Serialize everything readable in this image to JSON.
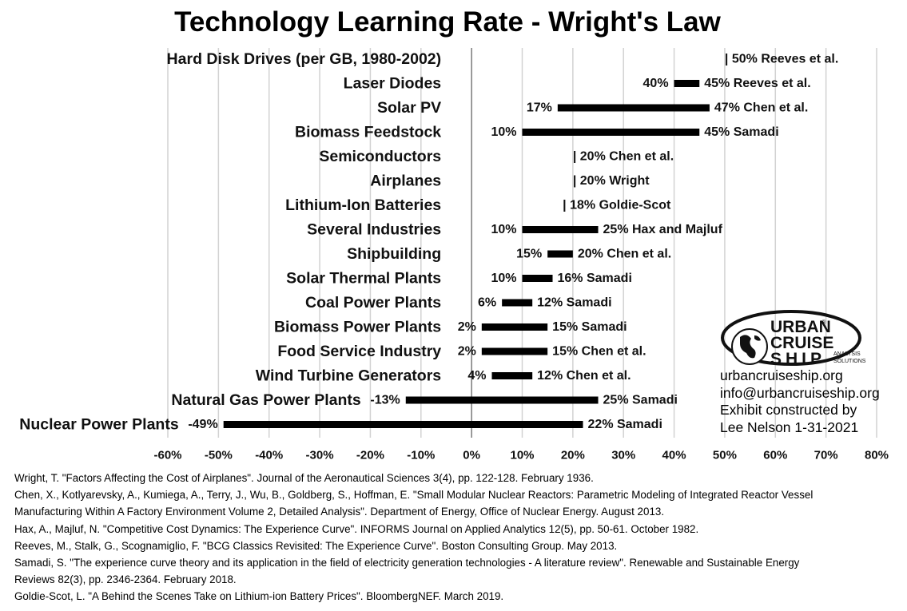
{
  "chart_data": {
    "type": "bar",
    "subtype": "floating-range",
    "title": "Technology Learning Rate - Wright's Law",
    "xlim": [
      -0.6,
      0.8
    ],
    "x_ticks": [
      -0.6,
      -0.5,
      -0.4,
      -0.3,
      -0.2,
      -0.1,
      0,
      0.1,
      0.2,
      0.3,
      0.4,
      0.5,
      0.6,
      0.7,
      0.8
    ],
    "x_tick_labels": [
      "-60%",
      "-50%",
      "-40%",
      "-30%",
      "-20%",
      "-10%",
      "0%",
      "10%",
      "20%",
      "30%",
      "40%",
      "50%",
      "60%",
      "70%",
      "80%"
    ],
    "grid": "vertical",
    "categories": [
      {
        "label": "Hard Disk Drives (per GB, 1980-2002)",
        "low": null,
        "high": 0.5,
        "low_label": "",
        "high_label": "| 50% Reeves et al."
      },
      {
        "label": "Laser Diodes",
        "low": 0.4,
        "high": 0.45,
        "low_label": "40%",
        "high_label": "45% Reeves et al."
      },
      {
        "label": "Solar PV",
        "low": 0.17,
        "high": 0.47,
        "low_label": "17%",
        "high_label": "47% Chen et al."
      },
      {
        "label": "Biomass Feedstock",
        "low": 0.1,
        "high": 0.45,
        "low_label": "10%",
        "high_label": "45% Samadi"
      },
      {
        "label": "Semiconductors",
        "low": null,
        "high": 0.2,
        "low_label": "",
        "high_label": "| 20% Chen et al."
      },
      {
        "label": "Airplanes",
        "low": null,
        "high": 0.2,
        "low_label": "",
        "high_label": "| 20% Wright"
      },
      {
        "label": "Lithium-Ion Batteries",
        "low": null,
        "high": 0.18,
        "low_label": "",
        "high_label": "| 18% Goldie-Scot"
      },
      {
        "label": "Several Industries",
        "low": 0.1,
        "high": 0.25,
        "low_label": "10%",
        "high_label": "25% Hax and Majluf"
      },
      {
        "label": "Shipbuilding",
        "low": 0.15,
        "high": 0.2,
        "low_label": "15%",
        "high_label": "20% Chen et al."
      },
      {
        "label": "Solar Thermal Plants",
        "low": 0.1,
        "high": 0.16,
        "low_label": "10%",
        "high_label": "16% Samadi"
      },
      {
        "label": "Coal Power Plants",
        "low": 0.06,
        "high": 0.12,
        "low_label": "6%",
        "high_label": "12% Samadi"
      },
      {
        "label": "Biomass Power Plants",
        "low": 0.02,
        "high": 0.15,
        "low_label": "2%",
        "high_label": "15% Samadi"
      },
      {
        "label": "Food Service Industry",
        "low": 0.02,
        "high": 0.15,
        "low_label": "2%",
        "high_label": "15% Chen et al."
      },
      {
        "label": "Wind Turbine Generators",
        "low": 0.04,
        "high": 0.12,
        "low_label": "4%",
        "high_label": "12% Chen et al."
      },
      {
        "label": "Natural Gas Power Plants",
        "low": -0.13,
        "high": 0.25,
        "low_label": "-13%",
        "high_label": "25% Samadi"
      },
      {
        "label": "Nuclear Power Plants",
        "low": -0.49,
        "high": 0.22,
        "low_label": "-49%",
        "high_label": "22% Samadi"
      }
    ]
  },
  "logo": {
    "line1": "URBAN",
    "line2": "CRUISE",
    "line3": "SHIP",
    "tag1": "ANALYSIS",
    "tag2": "SOLUTIONS",
    "mark": "®"
  },
  "info": {
    "website": "urbancruiseship.org",
    "email": "info@urbancruiseship.org",
    "credit1": "Exhibit constructed by",
    "credit2": "Lee Nelson 1-31-2021"
  },
  "references": [
    "Wright, T. \"Factors Affecting the Cost of Airplanes\". Journal of the Aeronautical Sciences 3(4), pp. 122-128. February 1936.",
    "Chen, X., Kotlyarevsky, A., Kumiega, A., Terry, J., Wu, B., Goldberg, S., Hoffman, E. \"Small Modular Nuclear Reactors: Parametric Modeling of Integrated Reactor Vessel",
    "Manufacturing Within A Factory Environment Volume 2, Detailed Analysis\". Department of Energy, Office of Nuclear Energy. August 2013.",
    "Hax, A., Majluf, N. \"Competitive Cost Dynamics: The Experience Curve\". INFORMS Journal on Applied Analytics 12(5), pp. 50-61. October 1982.",
    "Reeves, M., Stalk, G., Scognamiglio, F. \"BCG Classics Revisited: The Experience Curve\". Boston Consulting Group. May 2013.",
    "Samadi, S. \"The experience curve theory and its application in the field of electricity generation technologies - A literature review\". Renewable and Sustainable Energy",
    "Reviews 82(3), pp. 2346-2364. February 2018.",
    "Goldie-Scot, L. \"A Behind the Scenes Take on Lithium-ion Battery Prices\". BloombergNEF. March 2019."
  ]
}
